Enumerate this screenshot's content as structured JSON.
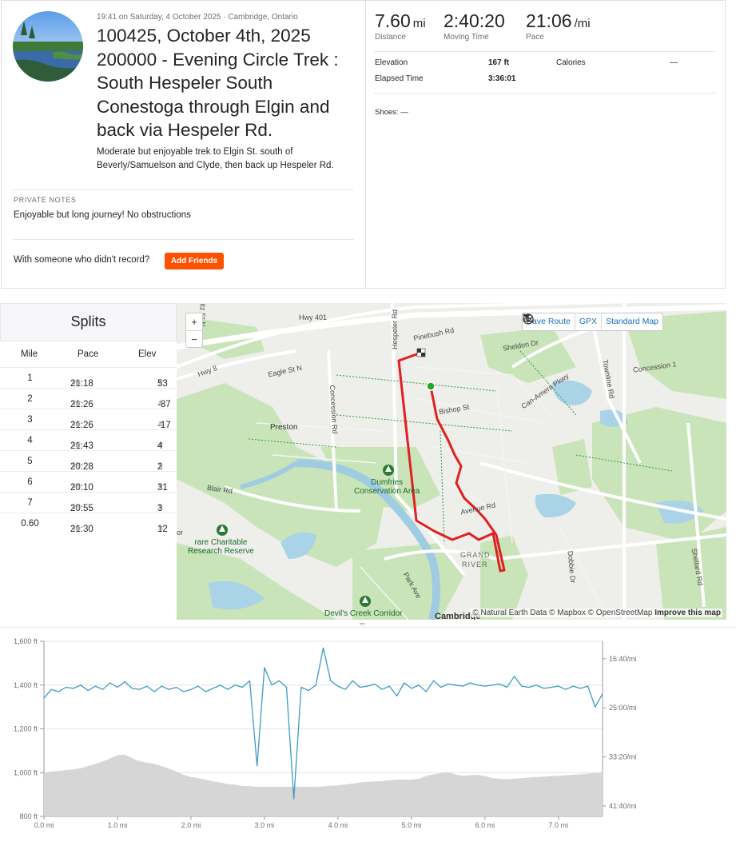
{
  "activity": {
    "meta": "19:41 on Saturday, 4 October 2025 · Cambridge, Ontario",
    "title": "100425, October 4th, 2025 200000 - Evening Circle Trek : South Hespeler South Conestoga through Elgin and back via Hespeler Rd.",
    "description": "Moderate but enjoyable trek to Elgin St. south of Beverly/Samuelson and Clyde, then back up Hespeler Rd.",
    "private_notes_label": "PRIVATE NOTES",
    "private_notes": "Enjoyable but long journey! No obstructions",
    "friends_prompt": "With someone who didn't record?",
    "add_friends_label": "Add Friends",
    "accent": "#fc5200"
  },
  "stats": {
    "distance": {
      "value": "7.60",
      "unit": "mi",
      "label": "Distance"
    },
    "moving_time": {
      "value": "2:40:20",
      "label": "Moving Time"
    },
    "pace": {
      "value": "21:06",
      "unit": "/mi",
      "label": "Pace"
    },
    "elevation_label": "Elevation",
    "elevation_value": "167 ft",
    "calories_label": "Calories",
    "calories_value": "—",
    "elapsed_label": "Elapsed Time",
    "elapsed_value": "3:36:01",
    "shoes": "Shoes: —"
  },
  "splits": {
    "title": "Splits",
    "headers": {
      "mile": "Mile",
      "pace": "Pace",
      "elev": "Elev"
    },
    "pace_unit": "/mi",
    "elev_unit": "ft",
    "rows": [
      {
        "mile": "1",
        "pace": "21:18",
        "elev": "53"
      },
      {
        "mile": "2",
        "pace": "21:26",
        "elev": "-87"
      },
      {
        "mile": "3",
        "pace": "21:26",
        "elev": "-17"
      },
      {
        "mile": "4",
        "pace": "21:43",
        "elev": "4"
      },
      {
        "mile": "5",
        "pace": "20:28",
        "elev": "2"
      },
      {
        "mile": "6",
        "pace": "20:10",
        "elev": "31"
      },
      {
        "mile": "7",
        "pace": "20:55",
        "elev": "3"
      },
      {
        "mile": "0.60",
        "pace": "21:30",
        "elev": "12"
      }
    ]
  },
  "map": {
    "zoom_in": "+",
    "zoom_out": "−",
    "save_route": "Save Route",
    "gpx": "GPX",
    "map_style": "Standard Map",
    "attribution_pre": "© Natural Earth Data © Mapbox © OpenStreetMap",
    "attribution_link": "Improve this map",
    "route_color": "#e02020",
    "start_color": "#22a82c",
    "labels": {
      "hwy401": "Hwy 401",
      "hwy8": "Hwy 8",
      "eagle": "Eagle St N",
      "pinebush": "Pinebush Rd",
      "sheldon": "Sheldon Dr",
      "bishop": "Bishop St",
      "canamera": "Can-Amera Pkwy",
      "concession1": "Concession 1",
      "townline": "Townline Rd",
      "concessionrd": "Concession Rd",
      "preston": "Preston",
      "hespeler": "Hespeler Rd",
      "dumfries1": "Dumfries",
      "dumfries2": "Conservation Area",
      "blair": "Blair Rd",
      "avenue": "Avenue Rd",
      "rare1": "rare Charitable",
      "rare2": "Research Reserve",
      "or": "or",
      "grand1": "GRAND",
      "grand2": "RIVER",
      "dobbie": "Dobbie Dr",
      "shellard": "Shellard Rd",
      "parkave": "Park Ave",
      "devils": "Devil's Creek Corridor",
      "cambridge": "Cambridge",
      "stn": "itz St N"
    }
  },
  "chart_data": {
    "type": "line",
    "x": [
      0.0,
      0.1,
      0.2,
      0.3,
      0.4,
      0.5,
      0.6,
      0.7,
      0.8,
      0.9,
      1.0,
      1.1,
      1.2,
      1.3,
      1.4,
      1.5,
      1.6,
      1.7,
      1.8,
      1.9,
      2.0,
      2.1,
      2.2,
      2.3,
      2.4,
      2.5,
      2.6,
      2.7,
      2.8,
      2.9,
      3.0,
      3.1,
      3.2,
      3.3,
      3.4,
      3.5,
      3.6,
      3.7,
      3.8,
      3.9,
      4.0,
      4.1,
      4.2,
      4.3,
      4.4,
      4.5,
      4.6,
      4.7,
      4.8,
      4.9,
      5.0,
      5.1,
      5.2,
      5.3,
      5.4,
      5.5,
      5.6,
      5.7,
      5.8,
      5.9,
      6.0,
      6.1,
      6.2,
      6.3,
      6.4,
      6.5,
      6.6,
      6.7,
      6.8,
      6.9,
      7.0,
      7.1,
      7.2,
      7.3,
      7.4,
      7.5,
      7.6
    ],
    "series": [
      {
        "values": [
          1000,
          1005,
          1008,
          1012,
          1015,
          1020,
          1030,
          1040,
          1052,
          1065,
          1080,
          1082,
          1066,
          1052,
          1045,
          1040,
          1030,
          1018,
          1005,
          990,
          980,
          975,
          968,
          960,
          955,
          948,
          945,
          940,
          938,
          935,
          935,
          935,
          935,
          935,
          935,
          935,
          935,
          935,
          937,
          940,
          942,
          946,
          950,
          955,
          958,
          960,
          962,
          965,
          968,
          968,
          968,
          972,
          985,
          992,
          998,
          1002,
          992,
          985,
          988,
          990,
          985,
          975,
          972,
          970,
          972,
          975,
          978,
          980,
          982,
          985,
          985,
          988,
          990,
          992,
          995,
          998,
          1000
        ]
      },
      {
        "values": [
          1340,
          1380,
          1370,
          1390,
          1385,
          1400,
          1375,
          1395,
          1380,
          1410,
          1390,
          1415,
          1385,
          1380,
          1395,
          1370,
          1395,
          1380,
          1390,
          1370,
          1380,
          1395,
          1370,
          1385,
          1400,
          1380,
          1400,
          1390,
          1420,
          1030,
          1480,
          1400,
          1420,
          1390,
          880,
          1390,
          1375,
          1400,
          1570,
          1420,
          1395,
          1380,
          1420,
          1390,
          1395,
          1405,
          1380,
          1395,
          1350,
          1410,
          1385,
          1400,
          1370,
          1420,
          1390,
          1405,
          1400,
          1395,
          1410,
          1400,
          1395,
          1400,
          1405,
          1390,
          1440,
          1395,
          1390,
          1400,
          1385,
          1390,
          1395,
          1380,
          1395,
          1385,
          1395,
          1300,
          1360
        ]
      }
    ],
    "ylim": [
      800,
      1600
    ],
    "yticks": [
      "800 ft",
      "1,000 ft",
      "1,200 ft",
      "1,400 ft",
      "1,600 ft"
    ],
    "xticks": [
      "0.0 mi",
      "1.0 mi",
      "2.0 mi",
      "3.0 mi",
      "4.0 mi",
      "5.0 mi",
      "6.0 mi",
      "7.0 mi"
    ],
    "y2ticks": [
      "16:40/mi",
      "25:00/mi",
      "33:20/mi",
      "41:40/mi"
    ],
    "grid": true,
    "colors": {
      "elevation_fill": "#d6d6d6",
      "pace_line": "#3d9cc4"
    }
  }
}
